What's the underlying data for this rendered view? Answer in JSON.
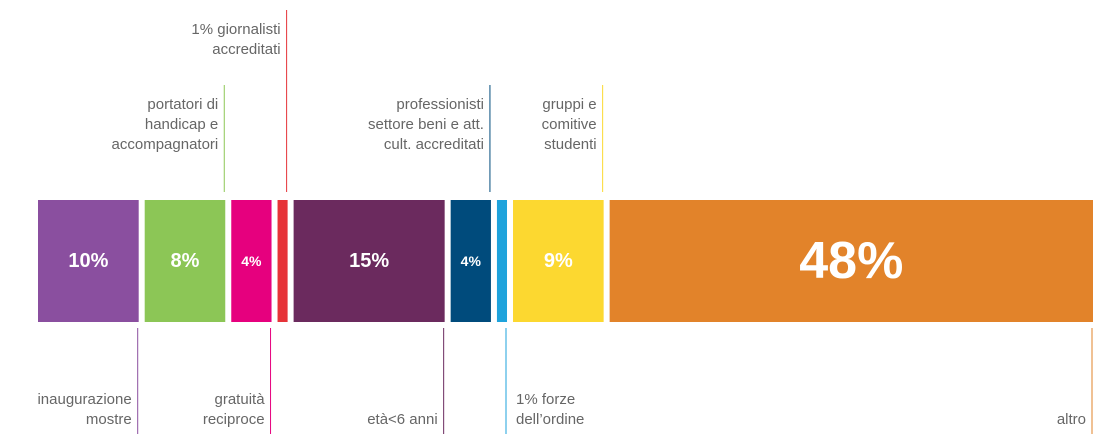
{
  "chart_data": {
    "type": "segmented-bar",
    "categories": [
      "inaugurazione\nmostre",
      "portatori di\nhandicap e\naccompagnatori",
      "gratuità\nreciproce",
      "1% giornalisti\naccreditati",
      "età<6 anni",
      "professionisti\nsettore beni e att.\ncult. accreditati",
      "1% forze\ndell’ordine",
      "gruppi e\ncomitive\nstudenti",
      "altro"
    ],
    "values": [
      10,
      8,
      4,
      1,
      15,
      4,
      1,
      9,
      48
    ],
    "value_labels": [
      "10%",
      "8%",
      "4%",
      null,
      "15%",
      "4%",
      null,
      "9%",
      "48%"
    ],
    "colors": [
      "#8a4f9f",
      "#8cc656",
      "#e6007e",
      "#e63338",
      "#6b2a5e",
      "#004b7c",
      "#1ea3dc",
      "#fcd830",
      "#e2832a"
    ]
  }
}
